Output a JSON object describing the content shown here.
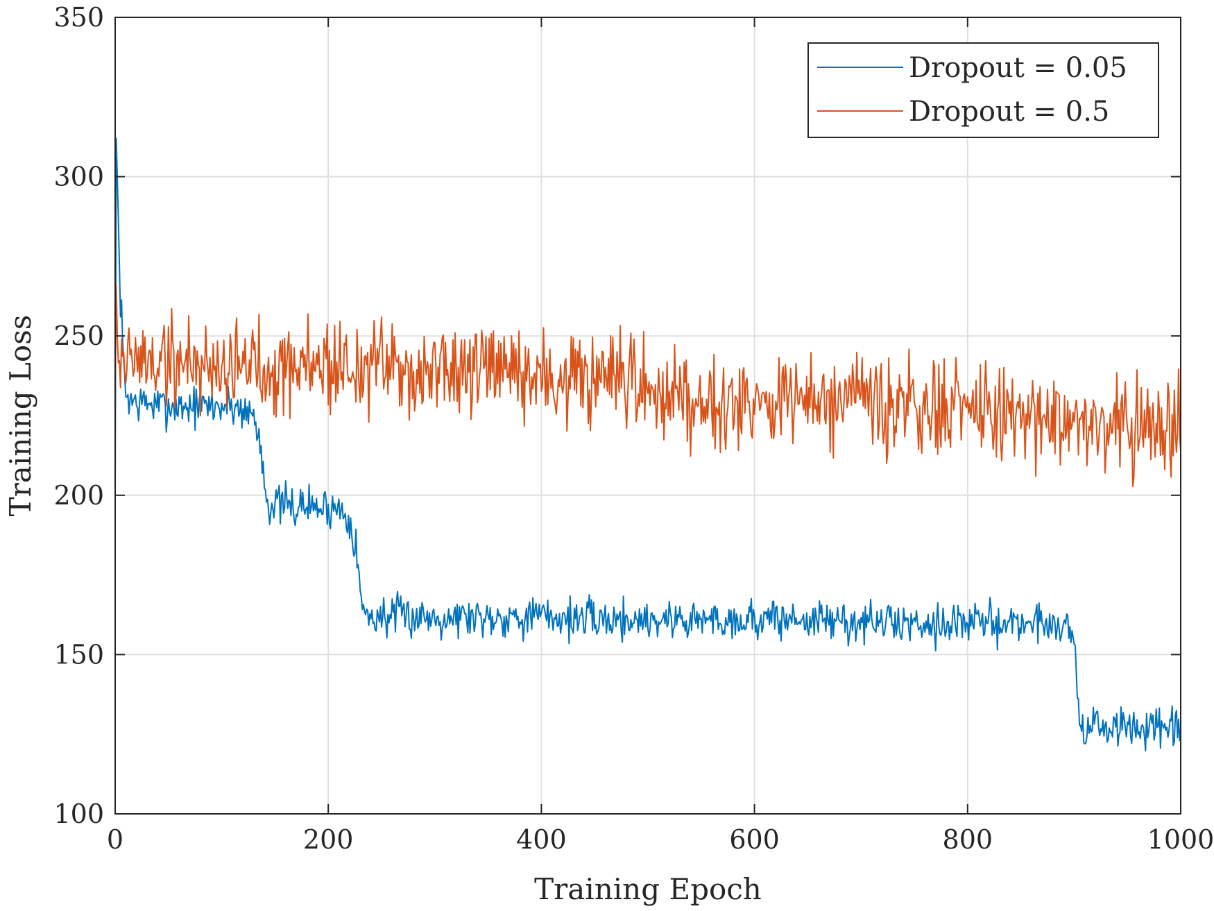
{
  "chart_data": {
    "type": "line",
    "title": "",
    "xlabel": "Training Epoch",
    "ylabel": "Training Loss",
    "xlim": [
      0,
      1000
    ],
    "ylim": [
      100,
      350
    ],
    "xticks": [
      0,
      200,
      400,
      600,
      800,
      1000
    ],
    "yticks": [
      100,
      150,
      200,
      250,
      300,
      350
    ],
    "xtick_labels": [
      "0",
      "200",
      "400",
      "600",
      "800",
      "1000"
    ],
    "ytick_labels": [
      "100",
      "150",
      "200",
      "250",
      "300",
      "350"
    ],
    "grid": true,
    "legend_position": "top-right",
    "series": [
      {
        "name": "Dropout = 0.05",
        "color": "#0072BD",
        "x": [
          0,
          1,
          2,
          4,
          6,
          8,
          10,
          15,
          20,
          30,
          40,
          50,
          60,
          70,
          80,
          90,
          100,
          110,
          120,
          125,
          130,
          132,
          135,
          138,
          140,
          142,
          145,
          150,
          160,
          170,
          180,
          190,
          200,
          210,
          215,
          220,
          222,
          225,
          228,
          230,
          232,
          235,
          240,
          250,
          260,
          270,
          280,
          290,
          300,
          350,
          400,
          450,
          500,
          550,
          600,
          650,
          700,
          750,
          800,
          850,
          880,
          890,
          895,
          898,
          900,
          902,
          904,
          906,
          910,
          920,
          930,
          940,
          950,
          960,
          970,
          980,
          990,
          1000
        ],
        "y": [
          200,
          312,
          300,
          270,
          255,
          240,
          232,
          230,
          229,
          229,
          228,
          228,
          228,
          228,
          228,
          228,
          228,
          228,
          227,
          226,
          225,
          222,
          218,
          212,
          205,
          200,
          197,
          197,
          197,
          196,
          197,
          196,
          196,
          196,
          195,
          193,
          190,
          185,
          178,
          170,
          165,
          162,
          162,
          162,
          162,
          162,
          162,
          162,
          162,
          162,
          162,
          161,
          161,
          161,
          161,
          161,
          160,
          160,
          160,
          160,
          160,
          159,
          158,
          157,
          155,
          145,
          135,
          128,
          127,
          127,
          127,
          127,
          127,
          127,
          127,
          126,
          126,
          126
        ]
      },
      {
        "name": "Dropout = 0.5",
        "color": "#D95319",
        "x": [
          0,
          1,
          2,
          4,
          6,
          10,
          20,
          40,
          60,
          80,
          100,
          120,
          140,
          160,
          180,
          200,
          220,
          240,
          260,
          280,
          300,
          350,
          400,
          450,
          500,
          550,
          600,
          650,
          700,
          750,
          800,
          850,
          900,
          950,
          1000
        ],
        "y": [
          233,
          266,
          250,
          246,
          244,
          243,
          242,
          242,
          242,
          241,
          241,
          241,
          241,
          241,
          241,
          241,
          240,
          240,
          240,
          239,
          239,
          238,
          237,
          235,
          233,
          231,
          230,
          229,
          228,
          227,
          226,
          225,
          224,
          222,
          221
        ]
      }
    ]
  }
}
